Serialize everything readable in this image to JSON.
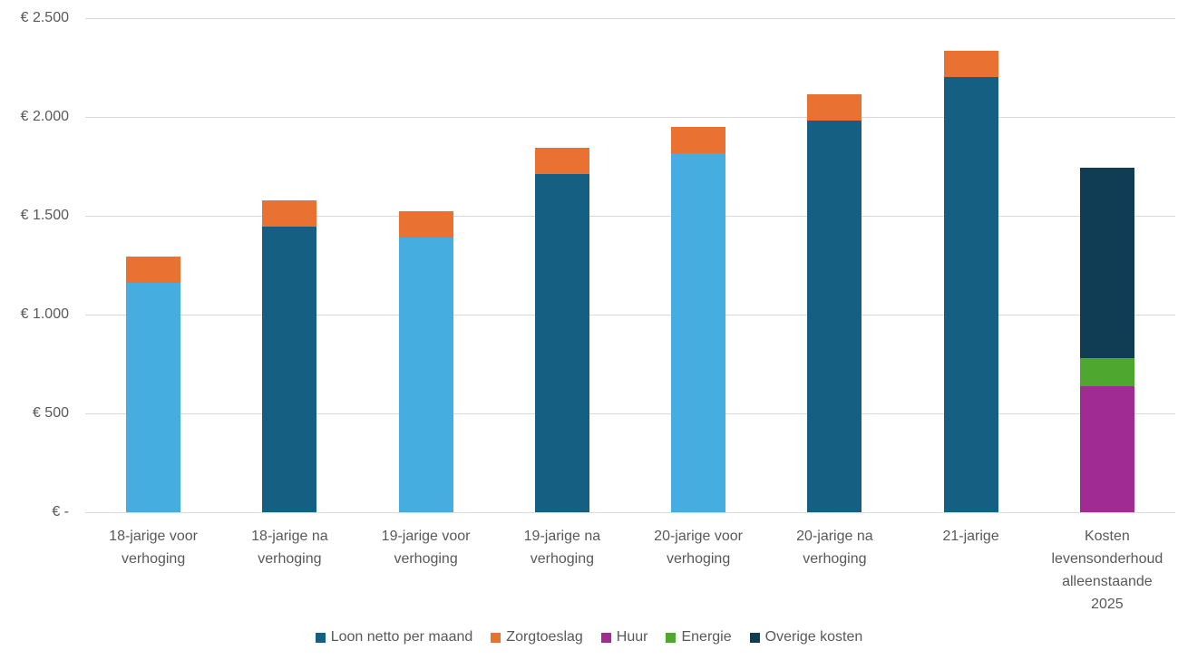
{
  "chart_data": {
    "type": "bar",
    "stacked": true,
    "title": "",
    "xlabel": "",
    "ylabel": "",
    "ylim": [
      0,
      2500
    ],
    "grid": true,
    "legend_position": "bottom",
    "currency": "EUR",
    "categories": [
      "18-jarige voor verhoging",
      "18-jarige na verhoging",
      "19-jarige voor verhoging",
      "19-jarige na verhoging",
      "20-jarige voor verhoging",
      "20-jarige na verhoging",
      "21-jarige",
      "Kosten levensonderhoud alleenstaande 2025"
    ],
    "series": [
      {
        "name": "Loon netto per maand",
        "color": "#156082",
        "point_colors": [
          "#45ADDF",
          "#156082",
          "#45ADDF",
          "#156082",
          "#45ADDF",
          "#156082",
          "#156082",
          null
        ],
        "values": [
          1160,
          1445,
          1390,
          1710,
          1815,
          1980,
          2200,
          null
        ]
      },
      {
        "name": "Zorgtoeslag",
        "color": "#E97132",
        "values": [
          135,
          135,
          135,
          135,
          135,
          135,
          135,
          null
        ]
      },
      {
        "name": "Huur",
        "color": "#A02B93",
        "values": [
          null,
          null,
          null,
          null,
          null,
          null,
          null,
          640
        ]
      },
      {
        "name": "Energie",
        "color": "#4EA72E",
        "values": [
          null,
          null,
          null,
          null,
          null,
          null,
          null,
          140
        ]
      },
      {
        "name": "Overige kosten",
        "color": "#103C54",
        "values": [
          null,
          null,
          null,
          null,
          null,
          null,
          null,
          965
        ]
      }
    ],
    "y_axis": {
      "ticks": [
        {
          "value": 0,
          "label": "€ -"
        },
        {
          "value": 500,
          "label": "€ 500"
        },
        {
          "value": 1000,
          "label": "€ 1.000"
        },
        {
          "value": 1500,
          "label": "€ 1.500"
        },
        {
          "value": 2000,
          "label": "€ 2.000"
        },
        {
          "value": 2500,
          "label": "€ 2.500"
        }
      ]
    },
    "gridline_color": "#D9D9D9",
    "axis_text_color": "#595959"
  }
}
